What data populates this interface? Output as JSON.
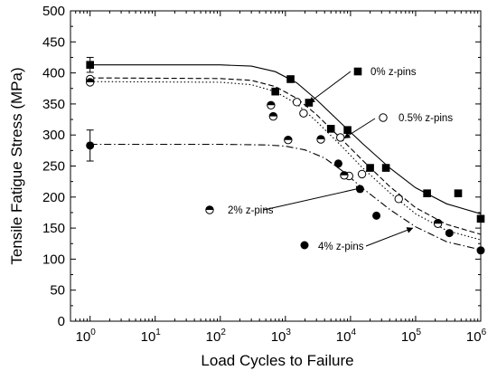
{
  "chart_data": {
    "type": "scatter",
    "title": "",
    "xlabel": "Load Cycles to Failure",
    "ylabel": "Tensile Fatigue Stress (MPa)",
    "x_scale": "log",
    "xlim": [
      0.5,
      1000000
    ],
    "ylim": [
      0,
      500
    ],
    "x_ticks": [
      {
        "value": 1,
        "base": "10",
        "exp": "0"
      },
      {
        "value": 10,
        "base": "10",
        "exp": "1"
      },
      {
        "value": 100,
        "base": "10",
        "exp": "2"
      },
      {
        "value": 1000,
        "base": "10",
        "exp": "3"
      },
      {
        "value": 10000,
        "base": "10",
        "exp": "4"
      },
      {
        "value": 100000,
        "base": "10",
        "exp": "5"
      },
      {
        "value": 1000000,
        "base": "10",
        "exp": "6"
      }
    ],
    "y_ticks": [
      "0",
      "50",
      "100",
      "150",
      "200",
      "250",
      "300",
      "350",
      "400",
      "450",
      "500"
    ],
    "grid": false,
    "series": [
      {
        "name": "0% z-pins",
        "marker": "filled-square",
        "line": "solid",
        "points": [
          {
            "x": 1,
            "y": 413,
            "err": 12
          },
          {
            "x": 700,
            "y": 370
          },
          {
            "x": 1200,
            "y": 390
          },
          {
            "x": 2300,
            "y": 352
          },
          {
            "x": 5000,
            "y": 310
          },
          {
            "x": 9000,
            "y": 308
          },
          {
            "x": 20000,
            "y": 247
          },
          {
            "x": 35000,
            "y": 247
          },
          {
            "x": 150000,
            "y": 206
          },
          {
            "x": 450000,
            "y": 206
          },
          {
            "x": 1000000,
            "y": 165
          }
        ],
        "fit": [
          {
            "x": 1,
            "y": 413
          },
          {
            "x": 100,
            "y": 413
          },
          {
            "x": 300,
            "y": 411
          },
          {
            "x": 700,
            "y": 402
          },
          {
            "x": 1500,
            "y": 384
          },
          {
            "x": 3000,
            "y": 357
          },
          {
            "x": 7000,
            "y": 320
          },
          {
            "x": 15000,
            "y": 287
          },
          {
            "x": 40000,
            "y": 247
          },
          {
            "x": 100000,
            "y": 215
          },
          {
            "x": 300000,
            "y": 189
          },
          {
            "x": 1000000,
            "y": 173
          }
        ]
      },
      {
        "name": "0.5% z-pins",
        "marker": "open-circle",
        "line": "dashed",
        "points": [
          {
            "x": 1,
            "y": 390
          },
          {
            "x": 1500,
            "y": 353
          },
          {
            "x": 1900,
            "y": 335
          },
          {
            "x": 7000,
            "y": 296
          },
          {
            "x": 9500,
            "y": 234
          },
          {
            "x": 15000,
            "y": 237
          },
          {
            "x": 55000,
            "y": 197
          },
          {
            "x": 220000,
            "y": 158
          }
        ],
        "fit": [
          {
            "x": 1,
            "y": 392
          },
          {
            "x": 100,
            "y": 391
          },
          {
            "x": 300,
            "y": 388
          },
          {
            "x": 700,
            "y": 378
          },
          {
            "x": 1500,
            "y": 359
          },
          {
            "x": 3000,
            "y": 333
          },
          {
            "x": 7000,
            "y": 295
          },
          {
            "x": 15000,
            "y": 260
          },
          {
            "x": 40000,
            "y": 217
          },
          {
            "x": 100000,
            "y": 183
          },
          {
            "x": 300000,
            "y": 156
          },
          {
            "x": 1000000,
            "y": 140
          }
        ]
      },
      {
        "name": "2% z-pins",
        "marker": "half-filled-circle",
        "line": "dotted",
        "points": [
          {
            "x": 1,
            "y": 385
          },
          {
            "x": 600,
            "y": 348
          },
          {
            "x": 650,
            "y": 330
          },
          {
            "x": 1100,
            "y": 292
          },
          {
            "x": 3500,
            "y": 293
          },
          {
            "x": 8000,
            "y": 235
          },
          {
            "x": 220000,
            "y": 157
          }
        ],
        "fit": [
          {
            "x": 1,
            "y": 386
          },
          {
            "x": 100,
            "y": 385
          },
          {
            "x": 300,
            "y": 381
          },
          {
            "x": 700,
            "y": 370
          },
          {
            "x": 1500,
            "y": 350
          },
          {
            "x": 3000,
            "y": 322
          },
          {
            "x": 7000,
            "y": 284
          },
          {
            "x": 15000,
            "y": 248
          },
          {
            "x": 40000,
            "y": 207
          },
          {
            "x": 100000,
            "y": 173
          },
          {
            "x": 300000,
            "y": 146
          },
          {
            "x": 1000000,
            "y": 131
          }
        ]
      },
      {
        "name": "4% z-pins",
        "marker": "filled-circle",
        "line": "dash-dot",
        "points": [
          {
            "x": 1,
            "y": 283,
            "err": 25
          },
          {
            "x": 6500,
            "y": 254
          },
          {
            "x": 14000,
            "y": 213
          },
          {
            "x": 25000,
            "y": 170
          },
          {
            "x": 330000,
            "y": 142
          },
          {
            "x": 1000000,
            "y": 114
          }
        ],
        "fit": [
          {
            "x": 1,
            "y": 285
          },
          {
            "x": 100,
            "y": 285
          },
          {
            "x": 500,
            "y": 284
          },
          {
            "x": 1000,
            "y": 282
          },
          {
            "x": 2000,
            "y": 276
          },
          {
            "x": 4000,
            "y": 263
          },
          {
            "x": 8000,
            "y": 240
          },
          {
            "x": 15000,
            "y": 215
          },
          {
            "x": 40000,
            "y": 180
          },
          {
            "x": 100000,
            "y": 152
          },
          {
            "x": 300000,
            "y": 128
          },
          {
            "x": 1000000,
            "y": 115
          }
        ]
      }
    ],
    "annotations": [
      {
        "series": 0,
        "text": "0% z-pins",
        "marker": "filled-square",
        "arrow_to": {
          "x": 2300,
          "y": 352
        }
      },
      {
        "series": 1,
        "text": "0.5% z-pins",
        "marker": "open-circle",
        "arrow_to": {
          "x": 8000,
          "y": 295
        }
      },
      {
        "series": 2,
        "text": "2% z-pins",
        "marker": "half-filled-circle",
        "arrow_to": {
          "x": 15000,
          "y": 215
        }
      },
      {
        "series": 3,
        "text": "4% z-pins",
        "marker": "filled-circle",
        "arrow_to": {
          "x": 90000,
          "y": 150
        }
      }
    ]
  }
}
